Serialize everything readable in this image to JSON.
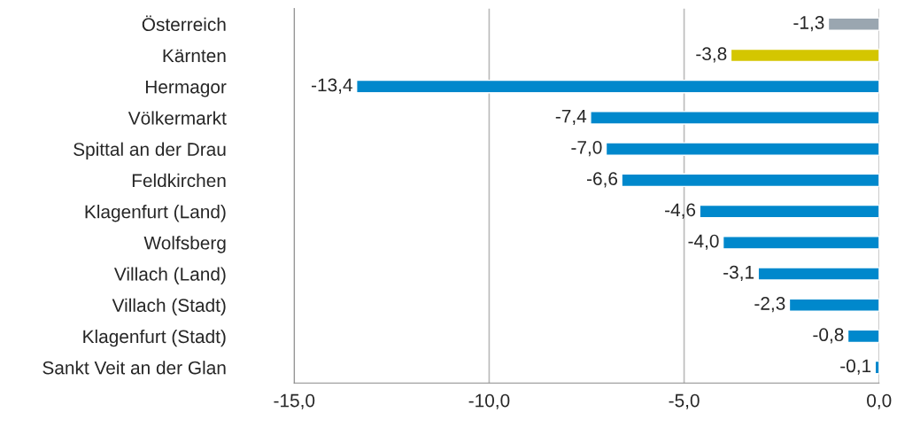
{
  "chart_data": {
    "type": "bar",
    "orientation": "horizontal",
    "categories": [
      "Österreich",
      "Kärnten",
      "Hermagor",
      "Völkermarkt",
      "Spittal an der Drau",
      "Feldkirchen",
      "Klagenfurt (Land)",
      "Wolfsberg",
      "Villach (Land)",
      "Villach (Stadt)",
      "Klagenfurt (Stadt)",
      "Sankt Veit an der Glan"
    ],
    "values": [
      -1.3,
      -3.8,
      -13.4,
      -7.4,
      -7.0,
      -6.6,
      -4.6,
      -4.0,
      -3.1,
      -2.3,
      -0.8,
      -0.1
    ],
    "colors": [
      "#9aa6b0",
      "#d4c600",
      "#0088cc",
      "#0088cc",
      "#0088cc",
      "#0088cc",
      "#0088cc",
      "#0088cc",
      "#0088cc",
      "#0088cc",
      "#0088cc",
      "#0088cc"
    ],
    "value_labels": [
      "-1,3",
      "-3,8",
      "-13,4",
      "-7,4",
      "-7,0",
      "-6,6",
      "-4,6",
      "-4,0",
      "-3,1",
      "-2,3",
      "-0,8",
      "-0,1"
    ],
    "xlim": [
      -15,
      0
    ],
    "xticks": [
      {
        "value": -15,
        "label": "-15,0"
      },
      {
        "value": -10,
        "label": "-10,0"
      },
      {
        "value": -5,
        "label": "-5,0"
      },
      {
        "value": 0,
        "label": "0,0"
      }
    ],
    "grid": "x",
    "legend": false
  }
}
